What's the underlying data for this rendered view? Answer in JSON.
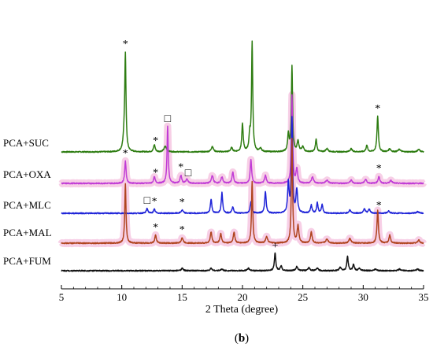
{
  "chart_data": {
    "type": "line",
    "title": "",
    "xlabel": "2 Theta (degree)",
    "ylabel": "",
    "xlim": [
      5,
      35
    ],
    "x_ticks": [
      5,
      10,
      15,
      20,
      25,
      30,
      35
    ],
    "grid": false,
    "legend": "labels at left of each trace",
    "caption": "(b)",
    "caption_bold": "b",
    "marker_legend": {
      "asterisk": "*",
      "square": "□",
      "plus": "+"
    },
    "series": [
      {
        "name": "PCA+SUC",
        "color": "#2e7d12",
        "highlight": false,
        "peaks": [
          [
            10.2,
            18,
            0.1
          ],
          [
            10.3,
            118,
            0.06
          ],
          [
            12.7,
            9,
            0.08
          ],
          [
            13.6,
            7,
            0.12
          ],
          [
            17.5,
            7,
            0.1
          ],
          [
            19.1,
            5,
            0.1
          ],
          [
            20.0,
            35,
            0.07
          ],
          [
            20.6,
            20,
            0.07
          ],
          [
            20.8,
            138,
            0.06
          ],
          [
            21.5,
            4,
            0.1
          ],
          [
            23.8,
            22,
            0.07
          ],
          [
            24.1,
            108,
            0.06
          ],
          [
            24.6,
            14,
            0.08
          ],
          [
            25.0,
            6,
            0.1
          ],
          [
            26.1,
            16,
            0.07
          ],
          [
            27.0,
            4,
            0.12
          ],
          [
            29.0,
            4,
            0.1
          ],
          [
            30.3,
            8,
            0.08
          ],
          [
            31.2,
            45,
            0.07
          ],
          [
            32.2,
            4,
            0.1
          ],
          [
            33.0,
            3,
            0.12
          ],
          [
            34.6,
            3,
            0.12
          ]
        ],
        "markers": [
          {
            "symbol": "*",
            "x": 10.3
          },
          {
            "symbol": "*",
            "x": 12.8
          },
          {
            "symbol": "*",
            "x": 31.2
          }
        ]
      },
      {
        "name": "PCA+OXA",
        "color": "#c13cd6",
        "highlight": true,
        "peaks": [
          [
            10.3,
            28,
            0.07
          ],
          [
            12.7,
            8,
            0.08
          ],
          [
            13.8,
            72,
            0.06
          ],
          [
            14.9,
            10,
            0.08
          ],
          [
            15.4,
            5,
            0.1
          ],
          [
            17.5,
            10,
            0.09
          ],
          [
            18.3,
            8,
            0.09
          ],
          [
            19.2,
            14,
            0.08
          ],
          [
            20.7,
            30,
            0.07
          ],
          [
            21.9,
            10,
            0.09
          ],
          [
            24.1,
            112,
            0.06
          ],
          [
            24.5,
            18,
            0.08
          ],
          [
            25.8,
            8,
            0.1
          ],
          [
            27.0,
            4,
            0.12
          ],
          [
            29.0,
            4,
            0.1
          ],
          [
            30.2,
            5,
            0.1
          ],
          [
            31.3,
            9,
            0.08
          ],
          [
            32.3,
            4,
            0.1
          ]
        ],
        "markers": [
          {
            "symbol": "*",
            "x": 10.3
          },
          {
            "symbol": "*",
            "x": 12.8
          },
          {
            "symbol": "□",
            "x": 13.8
          },
          {
            "symbol": "*",
            "x": 14.9
          },
          {
            "symbol": "□",
            "x": 15.5
          },
          {
            "symbol": "*",
            "x": 31.3
          }
        ]
      },
      {
        "name": "PCA+MLC",
        "color": "#1f24d8",
        "highlight": false,
        "peaks": [
          [
            12.1,
            6,
            0.08
          ],
          [
            12.7,
            5,
            0.08
          ],
          [
            15.0,
            4,
            0.1
          ],
          [
            17.4,
            18,
            0.07
          ],
          [
            18.3,
            26,
            0.07
          ],
          [
            19.2,
            8,
            0.08
          ],
          [
            20.7,
            14,
            0.08
          ],
          [
            21.9,
            28,
            0.07
          ],
          [
            23.8,
            38,
            0.07
          ],
          [
            24.1,
            120,
            0.06
          ],
          [
            24.5,
            30,
            0.08
          ],
          [
            25.7,
            10,
            0.08
          ],
          [
            26.2,
            13,
            0.07
          ],
          [
            26.6,
            11,
            0.07
          ],
          [
            28.9,
            4,
            0.1
          ],
          [
            30.1,
            6,
            0.09
          ],
          [
            30.5,
            5,
            0.09
          ],
          [
            32.1,
            3,
            0.1
          ],
          [
            34.5,
            2,
            0.12
          ]
        ],
        "markers": [
          {
            "symbol": "□",
            "x": 12.1
          },
          {
            "symbol": "*",
            "x": 12.7
          },
          {
            "symbol": "*",
            "x": 15.0
          },
          {
            "symbol": "*",
            "x": 31.3
          }
        ]
      },
      {
        "name": "PCA+MAL",
        "color": "#b0441e",
        "highlight": true,
        "peaks": [
          [
            10.3,
            75,
            0.06
          ],
          [
            12.8,
            10,
            0.08
          ],
          [
            15.0,
            7,
            0.09
          ],
          [
            17.4,
            14,
            0.08
          ],
          [
            18.2,
            12,
            0.08
          ],
          [
            19.3,
            14,
            0.08
          ],
          [
            20.8,
            78,
            0.06
          ],
          [
            22.0,
            8,
            0.1
          ],
          [
            24.1,
            132,
            0.06
          ],
          [
            24.6,
            22,
            0.08
          ],
          [
            25.7,
            14,
            0.08
          ],
          [
            27.0,
            5,
            0.12
          ],
          [
            28.9,
            6,
            0.1
          ],
          [
            31.2,
            42,
            0.07
          ],
          [
            32.2,
            10,
            0.08
          ],
          [
            34.6,
            4,
            0.1
          ]
        ],
        "markers": [
          {
            "symbol": "*",
            "x": 12.8
          },
          {
            "symbol": "*",
            "x": 15.0
          }
        ]
      },
      {
        "name": "PCA+FUM",
        "color": "#111111",
        "highlight": false,
        "peaks": [
          [
            15.0,
            3,
            0.1
          ],
          [
            17.4,
            3,
            0.1
          ],
          [
            18.3,
            2,
            0.1
          ],
          [
            20.5,
            3,
            0.1
          ],
          [
            22.7,
            22,
            0.07
          ],
          [
            23.2,
            6,
            0.08
          ],
          [
            24.5,
            5,
            0.1
          ],
          [
            25.5,
            4,
            0.1
          ],
          [
            26.2,
            3,
            0.1
          ],
          [
            28.1,
            4,
            0.1
          ],
          [
            28.7,
            18,
            0.07
          ],
          [
            29.2,
            8,
            0.08
          ],
          [
            29.7,
            3,
            0.1
          ],
          [
            31.0,
            2,
            0.12
          ],
          [
            33.0,
            2,
            0.12
          ],
          [
            34.5,
            2,
            0.12
          ]
        ],
        "markers": [
          {
            "symbol": "+",
            "x": 22.7
          }
        ]
      }
    ]
  }
}
